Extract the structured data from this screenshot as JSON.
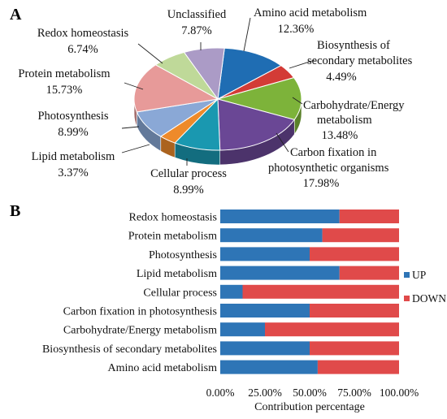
{
  "chart_data": [
    {
      "type": "pie",
      "panel_label": "A",
      "style": "3d",
      "slices": [
        {
          "label": "Amino acid metabolism",
          "value": 12.36,
          "value_label": "12.36%",
          "color": "#1f6db3"
        },
        {
          "label": "Biosynthesis of secondary metabolites",
          "value": 4.49,
          "value_label": "4.49%",
          "color": "#d33b36"
        },
        {
          "label": "Carbohydrate/Energy metabolism",
          "value": 13.48,
          "value_label": "13.48%",
          "color": "#7db33a"
        },
        {
          "label": "Carbon fixation in photosynthetic organisms",
          "value": 17.98,
          "value_label": "17.98%",
          "color": "#6a4795"
        },
        {
          "label": "Cellular process",
          "value": 8.99,
          "value_label": "8.99%",
          "color": "#1a98b0"
        },
        {
          "label": "Lipid metabolism",
          "value": 3.37,
          "value_label": "3.37%",
          "color": "#ee8a2a"
        },
        {
          "label": "Photosynthesis",
          "value": 8.99,
          "value_label": "8.99%",
          "color": "#8aa8d6"
        },
        {
          "label": "Protein metabolism",
          "value": 15.73,
          "value_label": "15.73%",
          "color": "#e79a99"
        },
        {
          "label": "Redox homeostasis",
          "value": 6.74,
          "value_label": "6.74%",
          "color": "#bfd999"
        },
        {
          "label": "Unclassified",
          "value": 7.87,
          "value_label": "7.87%",
          "color": "#ab9bc6"
        }
      ]
    },
    {
      "type": "bar",
      "orientation": "horizontal",
      "stacked": "percent",
      "panel_label": "B",
      "categories": [
        "Redox homeostasis",
        "Protein metabolism",
        "Photosynthesis",
        "Lipid metabolism",
        "Cellular process",
        "Carbon fixation in photosynthesis",
        "Carbohydrate/Energy metabolism",
        "Biosynthesis of secondary metabolites",
        "Amino acid metabolism"
      ],
      "series": [
        {
          "name": "UP",
          "color": "#2e75b6",
          "values": [
            66.7,
            57.1,
            50.0,
            66.7,
            12.5,
            50.0,
            25.0,
            50.0,
            54.5
          ]
        },
        {
          "name": "DOWN",
          "color": "#e04a4a",
          "values": [
            33.3,
            42.9,
            50.0,
            33.3,
            87.5,
            50.0,
            75.0,
            50.0,
            45.5
          ]
        }
      ],
      "xlabel": "Contribution percentage",
      "xlim": [
        0,
        100
      ],
      "xticks": [
        "0.00%",
        "25.00%",
        "50.00%",
        "75.00%",
        "100.00%"
      ],
      "legend": "right"
    }
  ]
}
